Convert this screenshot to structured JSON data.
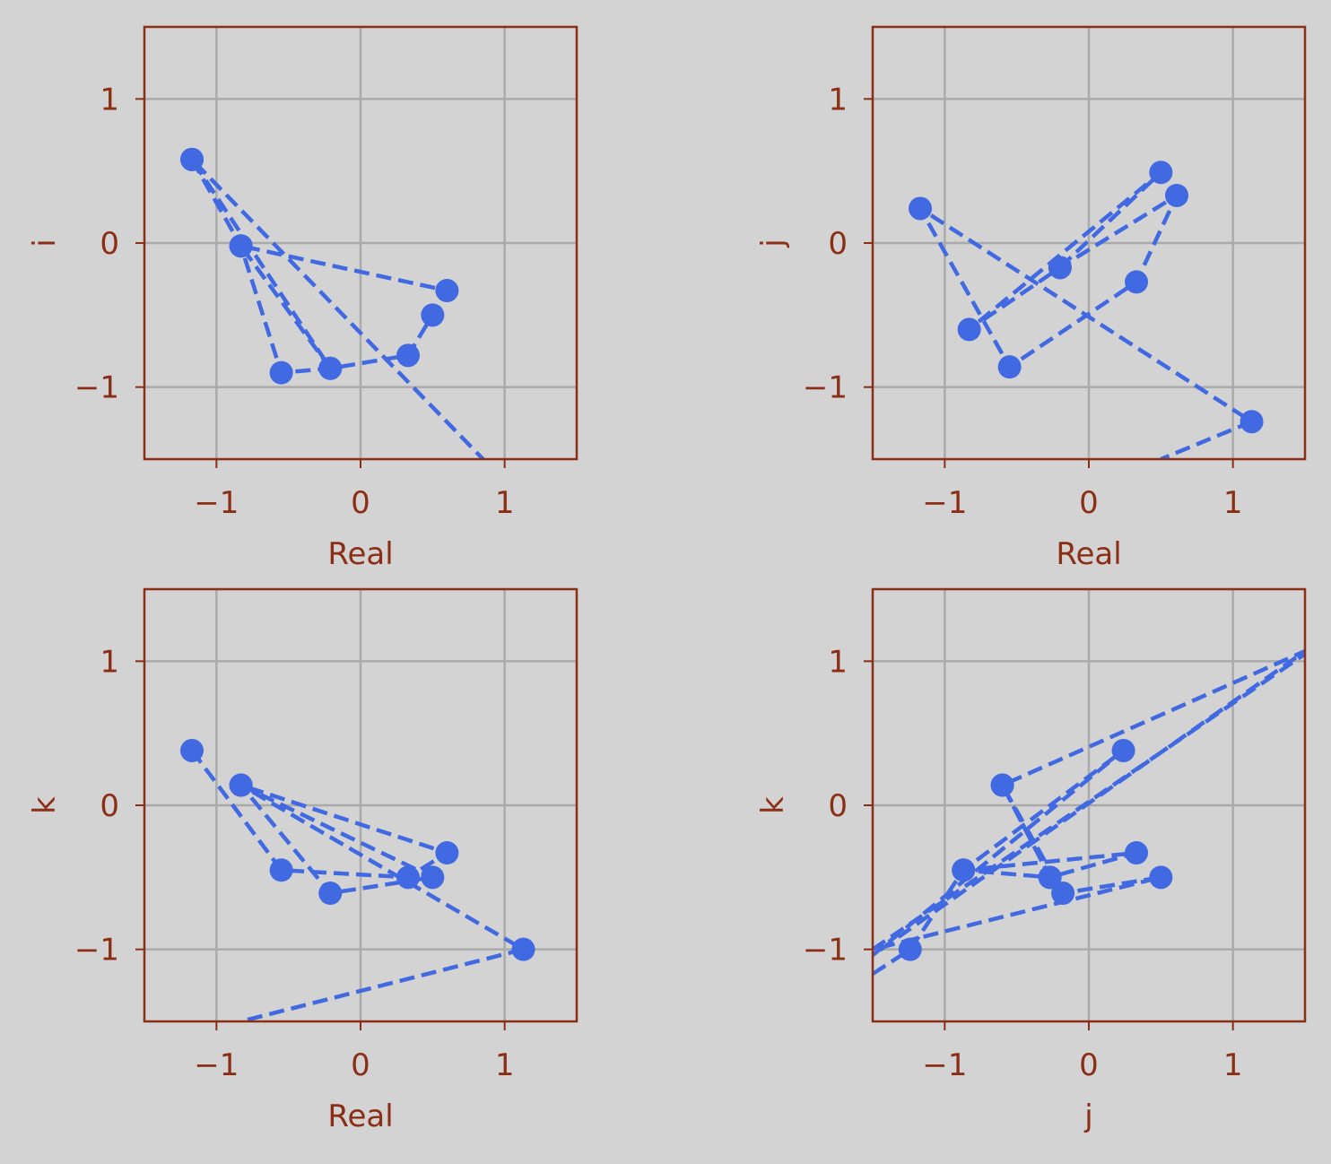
{
  "theme": {
    "background": "#d3d3d3",
    "axes_color": "#8b2e16",
    "grid_color": "#aaaaaa",
    "series_color": "#4169e1"
  },
  "chart_data": [
    {
      "type": "line",
      "style": "dashed line with circle markers",
      "xlabel": "Real",
      "ylabel": "i",
      "xlim": [
        -1.5,
        1.5
      ],
      "ylim": [
        -1.5,
        1.5
      ],
      "xticks": [
        -1,
        0,
        1
      ],
      "yticks": [
        -1,
        0,
        1
      ],
      "xtick_labels": [
        "−1",
        "0",
        "1"
      ],
      "ytick_labels": [
        "−1",
        "0",
        "1"
      ],
      "grid": true,
      "x": [
        -1.17,
        -0.83,
        -0.55,
        -0.21,
        0.33,
        0.5,
        0.6,
        -0.83,
        -0.21,
        -1.17,
        0.85
      ],
      "y": [
        0.58,
        -0.02,
        -0.9,
        -0.87,
        -0.78,
        -0.5,
        -0.33,
        -0.02,
        -0.87,
        0.58,
        -1.5
      ]
    },
    {
      "type": "line",
      "style": "dashed line with circle markers",
      "xlabel": "Real",
      "ylabel": "j",
      "xlim": [
        -1.5,
        1.5
      ],
      "ylim": [
        -1.5,
        1.5
      ],
      "xticks": [
        -1,
        0,
        1
      ],
      "yticks": [
        -1,
        0,
        1
      ],
      "xtick_labels": [
        "−1",
        "0",
        "1"
      ],
      "ytick_labels": [
        "−1",
        "0",
        "1"
      ],
      "grid": true,
      "x": [
        -0.2,
        0.5,
        -0.83,
        -0.2,
        0.61,
        0.33,
        -0.55,
        -1.17,
        1.13,
        0.5
      ],
      "y": [
        -0.17,
        0.49,
        -0.6,
        -0.17,
        0.33,
        -0.27,
        -0.86,
        0.24,
        -1.24,
        -1.5
      ]
    },
    {
      "type": "line",
      "style": "dashed line with circle markers",
      "xlabel": "Real",
      "ylabel": "k",
      "xlim": [
        -1.5,
        1.5
      ],
      "ylim": [
        -1.5,
        1.5
      ],
      "xticks": [
        -1,
        0,
        1
      ],
      "yticks": [
        -1,
        0,
        1
      ],
      "xtick_labels": [
        "−1",
        "0",
        "1"
      ],
      "ytick_labels": [
        "−1",
        "0",
        "1"
      ],
      "grid": true,
      "x": [
        -1.17,
        -0.55,
        0.33,
        0.6,
        -0.83,
        0.5,
        -0.21,
        -0.83,
        1.13,
        -0.83
      ],
      "y": [
        0.38,
        -0.45,
        -0.5,
        -0.33,
        0.14,
        -0.5,
        -0.61,
        0.14,
        -1.0,
        -1.5
      ]
    },
    {
      "type": "line",
      "style": "dashed line with circle markers",
      "xlabel": "j",
      "ylabel": "k",
      "xlim": [
        -1.5,
        1.5
      ],
      "ylim": [
        -1.5,
        1.5
      ],
      "xticks": [
        -1,
        0,
        1
      ],
      "yticks": [
        -1,
        0,
        1
      ],
      "xtick_labels": [
        "−1",
        "0",
        "1"
      ],
      "ytick_labels": [
        "−1",
        "0",
        "1"
      ],
      "grid": true,
      "x": [
        -1.5,
        -1.24,
        -0.87,
        0.24,
        -1.5,
        1.5,
        -0.6,
        -0.27,
        0.33,
        -0.87,
        -0.27,
        -0.6,
        -0.18,
        0.5,
        -1.5,
        1.5
      ],
      "y": [
        -1.17,
        -1.0,
        -0.45,
        0.38,
        -1.04,
        1.07,
        0.14,
        -0.5,
        -0.33,
        -0.45,
        -0.5,
        0.14,
        -0.61,
        -0.5,
        -1.0,
        1.05
      ]
    }
  ]
}
